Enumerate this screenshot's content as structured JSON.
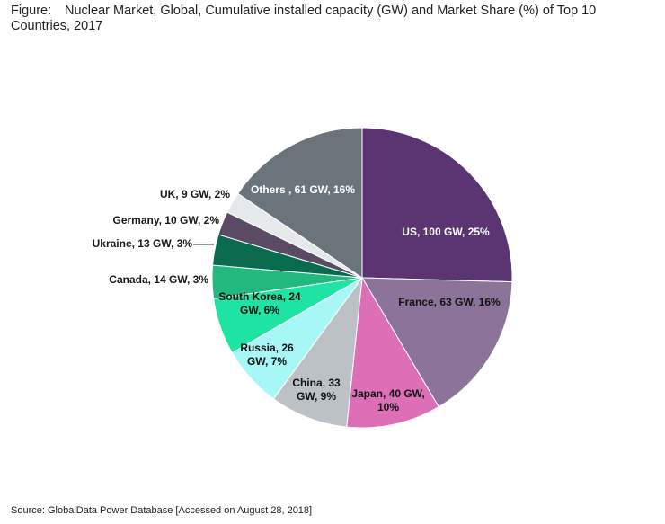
{
  "figure": {
    "label": "Figure:",
    "title": "Nuclear Market, Global, Cumulative installed capacity (GW) and Market Share (%) of Top 10 Countries, 2017"
  },
  "source": "Source: GlobalData Power Database [Accessed on August 28, 2018]",
  "chart_data": {
    "type": "pie",
    "title": "Nuclear Market, Global, Cumulative installed capacity (GW) and Market Share (%) of Top 10 Countries, 2017",
    "units": "GW",
    "slices": [
      {
        "label": "US",
        "value": 100,
        "share": 25,
        "text": [
          "US, 100 GW, 25%"
        ],
        "color": "#5b3572"
      },
      {
        "label": "France",
        "value": 63,
        "share": 16,
        "text": [
          "France, 63 GW, 16%"
        ],
        "color": "#8b7399"
      },
      {
        "label": "Japan",
        "value": 40,
        "share": 10,
        "text": [
          "Japan, 40 GW,",
          "10%"
        ],
        "color": "#dd6fb7"
      },
      {
        "label": "China",
        "value": 33,
        "share": 9,
        "text": [
          "China, 33",
          "GW, 9%"
        ],
        "color": "#bcc1c6"
      },
      {
        "label": "Russia",
        "value": 26,
        "share": 7,
        "text": [
          "Russia, 26",
          "GW, 7%"
        ],
        "color": "#a6f7f5"
      },
      {
        "label": "South Korea",
        "value": 24,
        "share": 6,
        "text": [
          "South Korea, 24",
          "GW, 6%"
        ],
        "color": "#1ee3a2"
      },
      {
        "label": "Canada",
        "value": 14,
        "share": 3,
        "text": [
          "Canada, 14 GW, 3%"
        ],
        "color": "#23b87e"
      },
      {
        "label": "Ukraine",
        "value": 13,
        "share": 3,
        "text": [
          "Ukraine, 13 GW, 3%"
        ],
        "color": "#0a6b4f"
      },
      {
        "label": "Germany",
        "value": 10,
        "share": 2,
        "text": [
          "Germany, 10 GW, 2%"
        ],
        "color": "#5a4a63"
      },
      {
        "label": "UK",
        "value": 9,
        "share": 2,
        "text": [
          "UK, 9 GW, 2%"
        ],
        "color": "#e6e9ec"
      },
      {
        "label": "Others",
        "value": 61,
        "share": 16,
        "text": [
          "Others , 61 GW, 16%"
        ],
        "color": "#6b747b"
      }
    ]
  }
}
